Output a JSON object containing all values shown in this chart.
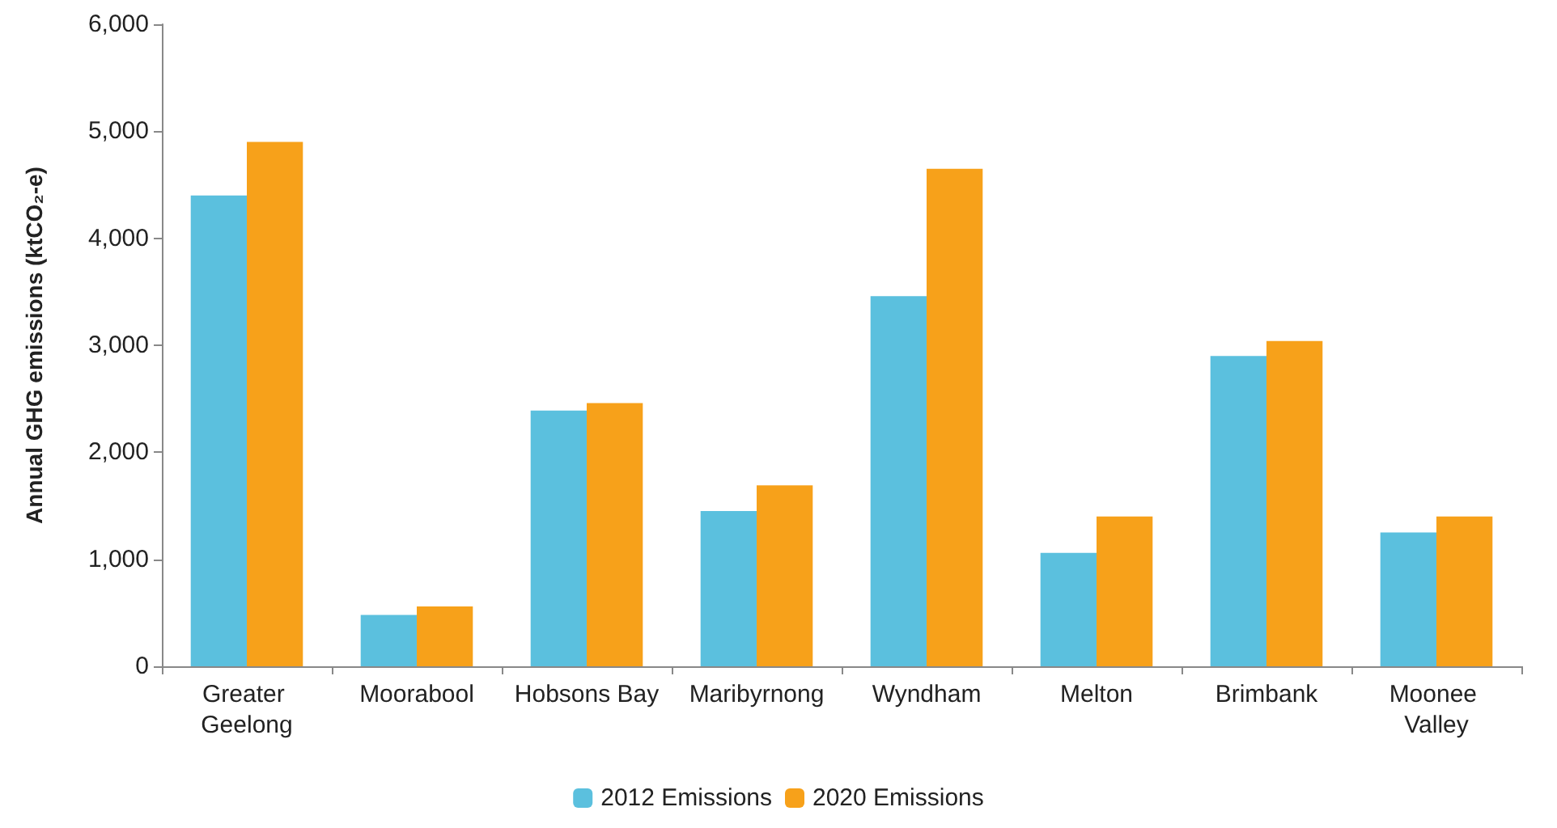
{
  "chart_data": {
    "type": "bar",
    "ylabel": "Annual GHG emissions (ktCO₂-e)",
    "categories": [
      "Greater Geelong",
      "Moorabool",
      "Hobsons Bay",
      "Maribyrnong",
      "Wyndham",
      "Melton",
      "Brimbank",
      "Moonee Valley"
    ],
    "series": [
      {
        "name": "2012 Emissions",
        "color": "#5bc0de",
        "values": [
          4400,
          480,
          2390,
          1450,
          3460,
          1060,
          2900,
          1250
        ]
      },
      {
        "name": "2020 Emissions",
        "color": "#f7a11a",
        "values": [
          4900,
          560,
          2460,
          1690,
          4650,
          1400,
          3040,
          1400
        ]
      }
    ],
    "ylim": [
      0,
      6000
    ],
    "yticks": [
      {
        "value": 0,
        "label": "0"
      },
      {
        "value": 1000,
        "label": "1,000"
      },
      {
        "value": 2000,
        "label": "2,000"
      },
      {
        "value": 3000,
        "label": "3,000"
      },
      {
        "value": 4000,
        "label": "4,000"
      },
      {
        "value": 5000,
        "label": "5,000"
      },
      {
        "value": 6000,
        "label": "6,000"
      }
    ],
    "grid": false,
    "legend": "bottom"
  }
}
